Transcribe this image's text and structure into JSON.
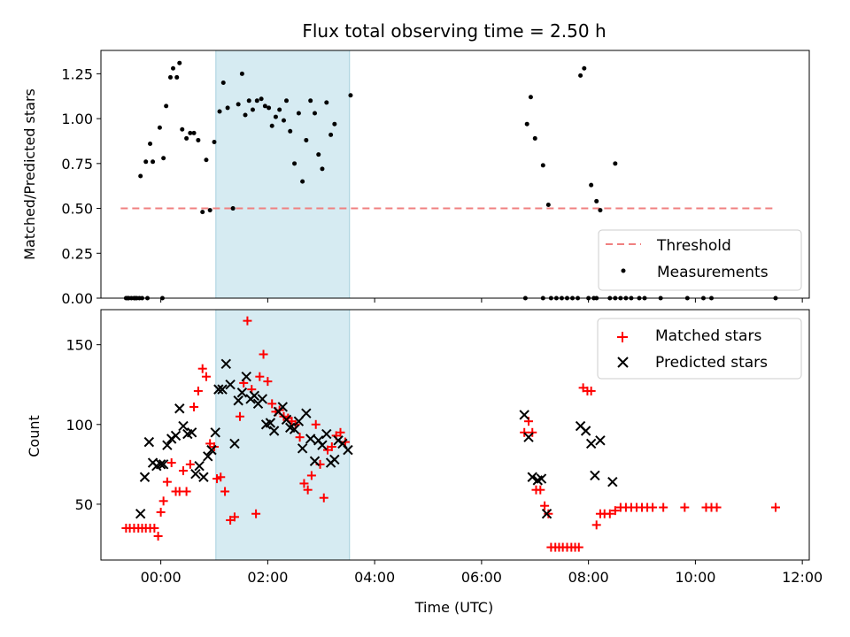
{
  "figure": {
    "title": "Flux total observing time = 2.50 h"
  },
  "chart_data": [
    {
      "type": "scatter",
      "name": "ratio",
      "ylabel": "Matched/Predicted stars",
      "xlabel": "",
      "xlim": [
        -1.12,
        12.13
      ],
      "ylim": [
        0.0,
        1.38
      ],
      "yticks": [
        0.0,
        0.25,
        0.5,
        0.75,
        1.0,
        1.25
      ],
      "ytick_labels": [
        "0.00",
        "0.25",
        "0.50",
        "0.75",
        "1.00",
        "1.25"
      ],
      "highlight_span": [
        1.03,
        3.53
      ],
      "threshold": {
        "name": "Threshold",
        "value": 0.5,
        "x_range": [
          -0.75,
          11.5
        ]
      },
      "legend": [
        "Threshold",
        "Measurements"
      ],
      "series": [
        {
          "name": "Measurements",
          "points": [
            [
              -0.65,
              0
            ],
            [
              -0.6,
              0
            ],
            [
              -0.55,
              0
            ],
            [
              -0.5,
              0
            ],
            [
              -0.45,
              0
            ],
            [
              -0.4,
              0
            ],
            [
              -0.35,
              0
            ],
            [
              -0.25,
              0
            ],
            [
              0.03,
              0
            ],
            [
              -0.62,
              0
            ],
            [
              -0.48,
              0
            ],
            [
              -0.38,
              0.68
            ],
            [
              -0.28,
              0.76
            ],
            [
              -0.2,
              0.86
            ],
            [
              -0.15,
              0.76
            ],
            [
              -0.02,
              0.95
            ],
            [
              0.05,
              0.78
            ],
            [
              0.1,
              1.07
            ],
            [
              0.18,
              1.23
            ],
            [
              0.23,
              1.28
            ],
            [
              0.3,
              1.23
            ],
            [
              0.35,
              1.31
            ],
            [
              0.4,
              0.94
            ],
            [
              0.48,
              0.89
            ],
            [
              0.55,
              0.92
            ],
            [
              0.62,
              0.92
            ],
            [
              0.7,
              0.88
            ],
            [
              0.78,
              0.48
            ],
            [
              0.85,
              0.77
            ],
            [
              0.92,
              0.49
            ],
            [
              1.0,
              0.87
            ],
            [
              1.1,
              1.04
            ],
            [
              1.17,
              1.2
            ],
            [
              1.25,
              1.06
            ],
            [
              1.35,
              0.5
            ],
            [
              1.45,
              1.08
            ],
            [
              1.52,
              1.25
            ],
            [
              1.58,
              1.02
            ],
            [
              1.65,
              1.1
            ],
            [
              1.72,
              1.05
            ],
            [
              1.8,
              1.1
            ],
            [
              1.88,
              1.11
            ],
            [
              1.95,
              1.07
            ],
            [
              2.02,
              1.06
            ],
            [
              2.08,
              0.96
            ],
            [
              2.15,
              1.01
            ],
            [
              2.22,
              1.05
            ],
            [
              2.3,
              0.99
            ],
            [
              2.35,
              1.1
            ],
            [
              2.42,
              0.93
            ],
            [
              2.5,
              0.75
            ],
            [
              2.58,
              1.03
            ],
            [
              2.65,
              0.65
            ],
            [
              2.72,
              0.88
            ],
            [
              2.8,
              1.1
            ],
            [
              2.88,
              1.03
            ],
            [
              2.95,
              0.8
            ],
            [
              3.02,
              0.72
            ],
            [
              3.1,
              1.09
            ],
            [
              3.18,
              0.91
            ],
            [
              3.25,
              0.97
            ],
            [
              3.55,
              1.13
            ],
            [
              6.85,
              0.97
            ],
            [
              6.92,
              1.12
            ],
            [
              7.0,
              0.89
            ],
            [
              7.15,
              0.74
            ],
            [
              7.25,
              0.52
            ],
            [
              7.85,
              1.24
            ],
            [
              7.92,
              1.28
            ],
            [
              8.05,
              0.63
            ],
            [
              8.15,
              0.54
            ],
            [
              8.22,
              0.49
            ],
            [
              8.5,
              0.75
            ],
            [
              6.82,
              0
            ],
            [
              7.15,
              0
            ],
            [
              7.3,
              0
            ],
            [
              7.4,
              0
            ],
            [
              7.5,
              0
            ],
            [
              7.6,
              0
            ],
            [
              7.7,
              0
            ],
            [
              7.8,
              0
            ],
            [
              8.0,
              0
            ],
            [
              8.1,
              0
            ],
            [
              8.15,
              0
            ],
            [
              8.4,
              0
            ],
            [
              8.5,
              0
            ],
            [
              8.6,
              0
            ],
            [
              8.7,
              0
            ],
            [
              8.8,
              0
            ],
            [
              8.95,
              0
            ],
            [
              9.05,
              0
            ],
            [
              9.35,
              0
            ],
            [
              9.85,
              0
            ],
            [
              10.15,
              0
            ],
            [
              10.3,
              0
            ],
            [
              11.5,
              0
            ]
          ]
        }
      ]
    },
    {
      "type": "scatter",
      "name": "count",
      "ylabel": "Count",
      "xlabel": "Time (UTC)",
      "xlim": [
        -1.12,
        12.13
      ],
      "ylim": [
        15,
        172
      ],
      "yticks": [
        50,
        100,
        150
      ],
      "ytick_labels": [
        "50",
        "100",
        "150"
      ],
      "xticks": [
        0,
        2,
        4,
        6,
        8,
        10,
        12
      ],
      "xtick_labels": [
        "00:00",
        "02:00",
        "04:00",
        "06:00",
        "08:00",
        "10:00",
        "12:00"
      ],
      "highlight_span": [
        1.03,
        3.53
      ],
      "legend": [
        "Matched stars",
        "Predicted stars"
      ],
      "series": [
        {
          "name": "Matched stars",
          "marker": "+",
          "color": "#ff0000",
          "points": [
            [
              -0.65,
              35
            ],
            [
              -0.58,
              35
            ],
            [
              -0.5,
              35
            ],
            [
              -0.42,
              35
            ],
            [
              -0.35,
              35
            ],
            [
              -0.28,
              35
            ],
            [
              -0.2,
              35
            ],
            [
              -0.12,
              35
            ],
            [
              -0.05,
              30
            ],
            [
              0.0,
              45
            ],
            [
              0.05,
              52
            ],
            [
              0.12,
              64
            ],
            [
              0.2,
              76
            ],
            [
              0.28,
              58
            ],
            [
              0.35,
              58
            ],
            [
              0.42,
              71
            ],
            [
              0.48,
              58
            ],
            [
              0.55,
              75
            ],
            [
              0.62,
              111
            ],
            [
              0.7,
              121
            ],
            [
              0.78,
              135
            ],
            [
              0.85,
              130
            ],
            [
              0.92,
              88
            ],
            [
              1.0,
              86
            ],
            [
              1.05,
              66
            ],
            [
              1.12,
              67
            ],
            [
              1.2,
              58
            ],
            [
              1.3,
              40
            ],
            [
              1.38,
              42
            ],
            [
              1.48,
              105
            ],
            [
              1.55,
              126
            ],
            [
              1.62,
              165
            ],
            [
              1.7,
              122
            ],
            [
              1.78,
              44
            ],
            [
              1.85,
              130
            ],
            [
              1.92,
              144
            ],
            [
              2.0,
              127
            ],
            [
              2.08,
              113
            ],
            [
              2.15,
              108
            ],
            [
              2.22,
              109
            ],
            [
              2.3,
              105
            ],
            [
              2.38,
              104
            ],
            [
              2.45,
              102
            ],
            [
              2.52,
              100
            ],
            [
              2.6,
              92
            ],
            [
              2.68,
              63
            ],
            [
              2.75,
              59
            ],
            [
              2.82,
              68
            ],
            [
              2.9,
              100
            ],
            [
              2.98,
              75
            ],
            [
              3.05,
              54
            ],
            [
              3.12,
              84
            ],
            [
              3.2,
              86
            ],
            [
              3.28,
              93
            ],
            [
              3.36,
              95
            ],
            [
              3.45,
              89
            ],
            [
              6.8,
              95
            ],
            [
              6.88,
              102
            ],
            [
              6.95,
              95
            ],
            [
              7.02,
              59
            ],
            [
              7.1,
              59
            ],
            [
              7.18,
              49
            ],
            [
              7.25,
              44
            ],
            [
              7.3,
              23
            ],
            [
              7.38,
              23
            ],
            [
              7.45,
              23
            ],
            [
              7.52,
              23
            ],
            [
              7.6,
              23
            ],
            [
              7.68,
              23
            ],
            [
              7.75,
              23
            ],
            [
              7.82,
              23
            ],
            [
              7.9,
              123
            ],
            [
              7.98,
              121
            ],
            [
              8.05,
              121
            ],
            [
              8.15,
              37
            ],
            [
              8.22,
              44
            ],
            [
              8.3,
              44
            ],
            [
              8.4,
              44
            ],
            [
              8.5,
              46
            ],
            [
              8.6,
              48
            ],
            [
              8.7,
              48
            ],
            [
              8.8,
              48
            ],
            [
              8.9,
              48
            ],
            [
              9.0,
              48
            ],
            [
              9.1,
              48
            ],
            [
              9.2,
              48
            ],
            [
              9.4,
              48
            ],
            [
              9.8,
              48
            ],
            [
              10.2,
              48
            ],
            [
              10.3,
              48
            ],
            [
              10.4,
              48
            ],
            [
              11.5,
              48
            ]
          ]
        },
        {
          "name": "Predicted stars",
          "marker": "x",
          "color": "#000000",
          "points": [
            [
              -0.38,
              44
            ],
            [
              -0.3,
              67
            ],
            [
              -0.22,
              89
            ],
            [
              -0.15,
              76
            ],
            [
              -0.08,
              74
            ],
            [
              0.0,
              75
            ],
            [
              0.05,
              75
            ],
            [
              0.12,
              87
            ],
            [
              0.2,
              91
            ],
            [
              0.28,
              93
            ],
            [
              0.35,
              110
            ],
            [
              0.42,
              99
            ],
            [
              0.5,
              94
            ],
            [
              0.58,
              95
            ],
            [
              0.65,
              69
            ],
            [
              0.72,
              74
            ],
            [
              0.8,
              67
            ],
            [
              0.88,
              80
            ],
            [
              0.95,
              84
            ],
            [
              1.02,
              95
            ],
            [
              1.08,
              122
            ],
            [
              1.15,
              122
            ],
            [
              1.22,
              138
            ],
            [
              1.3,
              125
            ],
            [
              1.38,
              88
            ],
            [
              1.45,
              115
            ],
            [
              1.52,
              120
            ],
            [
              1.6,
              130
            ],
            [
              1.68,
              116
            ],
            [
              1.75,
              118
            ],
            [
              1.82,
              113
            ],
            [
              1.9,
              116
            ],
            [
              1.97,
              100
            ],
            [
              2.05,
              101
            ],
            [
              2.12,
              96
            ],
            [
              2.2,
              108
            ],
            [
              2.28,
              111
            ],
            [
              2.35,
              103
            ],
            [
              2.42,
              98
            ],
            [
              2.5,
              97
            ],
            [
              2.58,
              102
            ],
            [
              2.65,
              85
            ],
            [
              2.72,
              107
            ],
            [
              2.8,
              91
            ],
            [
              2.88,
              77
            ],
            [
              2.95,
              90
            ],
            [
              3.02,
              87
            ],
            [
              3.1,
              94
            ],
            [
              3.18,
              76
            ],
            [
              3.25,
              78
            ],
            [
              3.32,
              90
            ],
            [
              3.4,
              88
            ],
            [
              3.5,
              84
            ],
            [
              6.8,
              106
            ],
            [
              6.88,
              92
            ],
            [
              6.95,
              67
            ],
            [
              7.05,
              65
            ],
            [
              7.12,
              66
            ],
            [
              7.22,
              44
            ],
            [
              7.85,
              99
            ],
            [
              7.95,
              96
            ],
            [
              8.05,
              88
            ],
            [
              8.12,
              68
            ],
            [
              8.22,
              90
            ],
            [
              8.45,
              64
            ]
          ]
        }
      ]
    }
  ]
}
